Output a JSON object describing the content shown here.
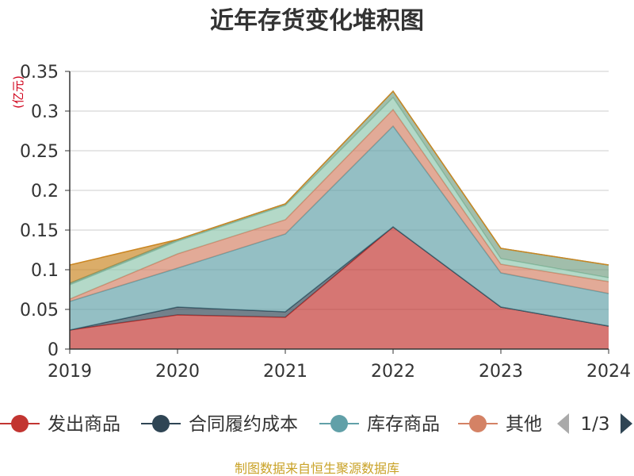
{
  "chart_data": {
    "type": "area",
    "title": "近年存货变化堆积图",
    "ylabel": "(亿元)",
    "xlabel": "",
    "x": [
      "2019",
      "2020",
      "2021",
      "2022",
      "2023",
      "2024"
    ],
    "ylim": [
      0,
      0.35
    ],
    "yticks": [
      "0",
      "0.05",
      "0.1",
      "0.15",
      "0.2",
      "0.25",
      "0.3",
      "0.35"
    ],
    "stacked": true,
    "grid": true,
    "legend_position": "bottom",
    "series": [
      {
        "name": "发出商品",
        "color": "#c23531",
        "values": [
          0.024,
          0.043,
          0.04,
          0.154,
          0.053,
          0.029
        ]
      },
      {
        "name": "合同履约成本",
        "color": "#2f4554",
        "values": [
          0.0,
          0.01,
          0.007,
          0.0,
          0.0,
          0.0
        ]
      },
      {
        "name": "库存商品",
        "color": "#61a0a8",
        "values": [
          0.036,
          0.049,
          0.098,
          0.127,
          0.043,
          0.041
        ]
      },
      {
        "name": "其他",
        "color": "#d48265",
        "values": [
          0.003,
          0.018,
          0.018,
          0.021,
          0.011,
          0.015
        ]
      },
      {
        "color": "#91c7ae",
        "values": [
          0.018,
          0.016,
          0.018,
          0.015,
          0.007,
          0.005
        ]
      },
      {
        "color": "#749f83",
        "values": [
          0.002,
          0.002,
          0.002,
          0.008,
          0.013,
          0.016
        ]
      },
      {
        "color": "#ca8622",
        "values": [
          0.023,
          0.0,
          0.0,
          0.0,
          0.0,
          0.0
        ]
      }
    ]
  },
  "legend": {
    "items": [
      {
        "label": "发出商品",
        "color": "#c23531"
      },
      {
        "label": "合同履约成本",
        "color": "#2f4554"
      },
      {
        "label": "库存商品",
        "color": "#61a0a8"
      },
      {
        "label": "其他",
        "color": "#d48265"
      }
    ],
    "page_label": "1/3"
  },
  "source_text": "制图数据来自恒生聚源数据库"
}
